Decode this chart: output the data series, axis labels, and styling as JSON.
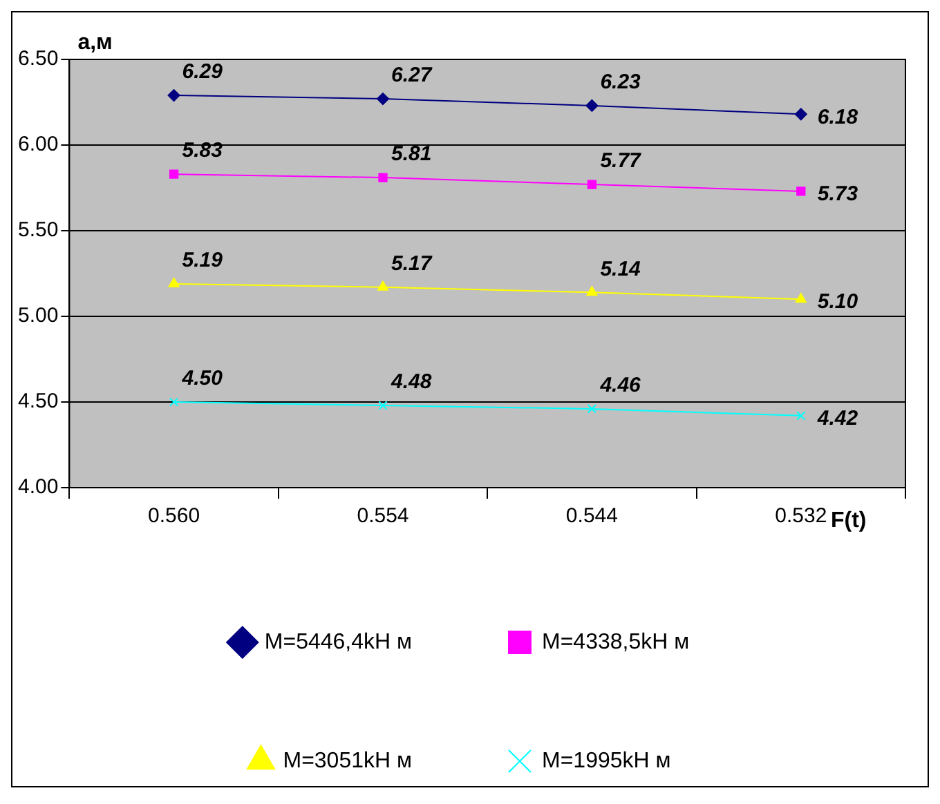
{
  "chart_data": {
    "type": "line",
    "xlabel": "F(t)",
    "ylabel": "а,м",
    "categories": [
      "0.560",
      "0.554",
      "0.544",
      "0.532"
    ],
    "series": [
      {
        "name": "M=5446,4kH м",
        "color": "#000080",
        "marker": "diamond",
        "values": [
          6.29,
          6.27,
          6.23,
          6.18
        ],
        "value_labels": [
          "6.29",
          "6.27",
          "6.23",
          "6.18"
        ]
      },
      {
        "name": "M=4338,5kH м",
        "color": "#ff00ff",
        "marker": "square",
        "values": [
          5.83,
          5.81,
          5.77,
          5.73
        ],
        "value_labels": [
          "5.83",
          "5.81",
          "5.77",
          "5.73"
        ]
      },
      {
        "name": "M=3051kH м",
        "color": "#ffff00",
        "marker": "triangle",
        "values": [
          5.19,
          5.17,
          5.14,
          5.1
        ],
        "value_labels": [
          "5.19",
          "5.17",
          "5.14",
          "5.10"
        ]
      },
      {
        "name": "M=1995kH м",
        "color": "#00ffff",
        "marker": "cross",
        "values": [
          4.5,
          4.48,
          4.46,
          4.42
        ],
        "value_labels": [
          "4.50",
          "4.48",
          "4.46",
          "4.42"
        ]
      }
    ],
    "ylim": [
      4,
      6.5
    ],
    "yticks": [
      {
        "value": 4,
        "label": "4.00"
      },
      {
        "value": 4.5,
        "label": "4.50"
      },
      {
        "value": 5,
        "label": "5.00"
      },
      {
        "value": 5.5,
        "label": "5.50"
      },
      {
        "value": 6,
        "label": "6.00"
      },
      {
        "value": 6.5,
        "label": "6.50"
      }
    ],
    "grid": "y",
    "legend": "bottom",
    "line_style": "solid"
  }
}
